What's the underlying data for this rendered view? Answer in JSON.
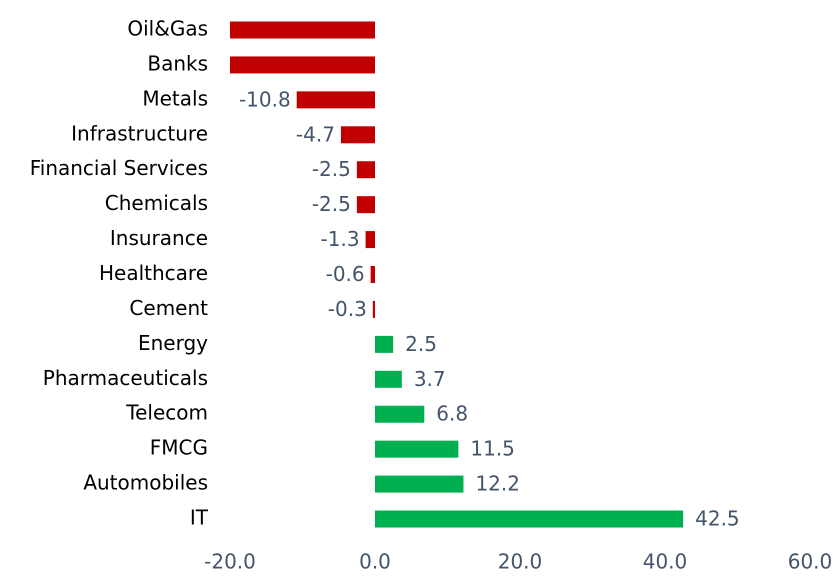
{
  "chart_data": {
    "type": "hbar",
    "categories": [
      "Oil&Gas",
      "Banks",
      "Metals",
      "Infrastructure",
      "Financial Services",
      "Chemicals",
      "Insurance",
      "Healthcare",
      "Cement",
      "Energy",
      "Pharmaceuticals",
      "Telecom",
      "FMCG",
      "Automobiles",
      "IT"
    ],
    "values": [
      -20,
      -20,
      -10.8,
      -4.7,
      -2.5,
      -2.5,
      -1.3,
      -0.6,
      -0.3,
      2.5,
      3.7,
      6.8,
      11.5,
      12.2,
      42.5
    ],
    "value_labels": [
      null,
      null,
      "-10.8",
      "-4.7",
      "-2.5",
      "-2.5",
      "-1.3",
      "-0.6",
      "-0.3",
      "2.5",
      "3.7",
      "6.8",
      "11.5",
      "12.2",
      "42.5"
    ],
    "negative_color": "#c00000",
    "positive_color": "#00b050",
    "xlim": [
      -20,
      60
    ],
    "xticks": [
      {
        "value": -20,
        "label": "-20.0"
      },
      {
        "value": 0,
        "label": "0.0"
      },
      {
        "value": 20,
        "label": "20.0"
      },
      {
        "value": 40,
        "label": "40.0"
      },
      {
        "value": 60,
        "label": "60.0"
      }
    ],
    "grid": false
  }
}
